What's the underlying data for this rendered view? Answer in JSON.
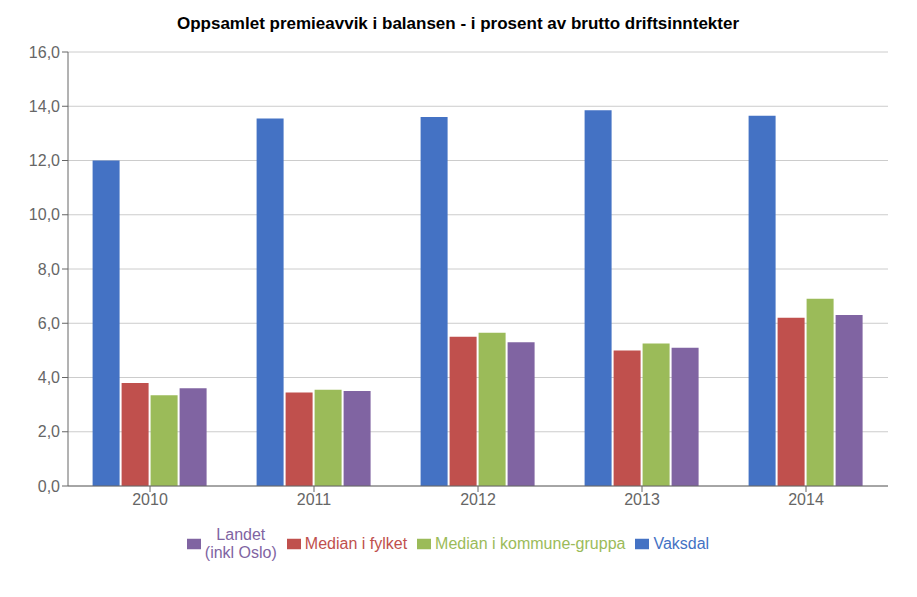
{
  "chart_data": {
    "type": "bar",
    "title": "Oppsamlet premieavvik i balansen - i prosent av brutto driftsinntekter",
    "categories": [
      "2010",
      "2011",
      "2012",
      "2013",
      "2014"
    ],
    "series": [
      {
        "name": "Vaksdal",
        "color": "#4472C4",
        "values": [
          12.0,
          13.55,
          13.6,
          13.85,
          13.65
        ]
      },
      {
        "name": "Median i fylket",
        "color": "#C0504D",
        "values": [
          3.8,
          3.45,
          5.5,
          5.0,
          6.2
        ]
      },
      {
        "name": "Median i kommune-gruppa",
        "color": "#9BBB59",
        "values": [
          3.35,
          3.55,
          5.65,
          5.25,
          6.9
        ]
      },
      {
        "name": "Landet\n(inkl Oslo)",
        "color": "#8064A2",
        "values": [
          3.6,
          3.5,
          5.3,
          5.1,
          6.3
        ]
      }
    ],
    "ylim": [
      0,
      16.0
    ],
    "yticks": [
      {
        "value": 0.0,
        "label": "0,0"
      },
      {
        "value": 2.0,
        "label": "2,0"
      },
      {
        "value": 4.0,
        "label": "4,0"
      },
      {
        "value": 6.0,
        "label": "6,0"
      },
      {
        "value": 8.0,
        "label": "8,0"
      },
      {
        "value": 10.0,
        "label": "10,0"
      },
      {
        "value": 12.0,
        "label": "12,0"
      },
      {
        "value": 14.0,
        "label": "14,0"
      },
      {
        "value": 16.0,
        "label": "16,0"
      }
    ],
    "grid": true,
    "legend": "bottom"
  }
}
